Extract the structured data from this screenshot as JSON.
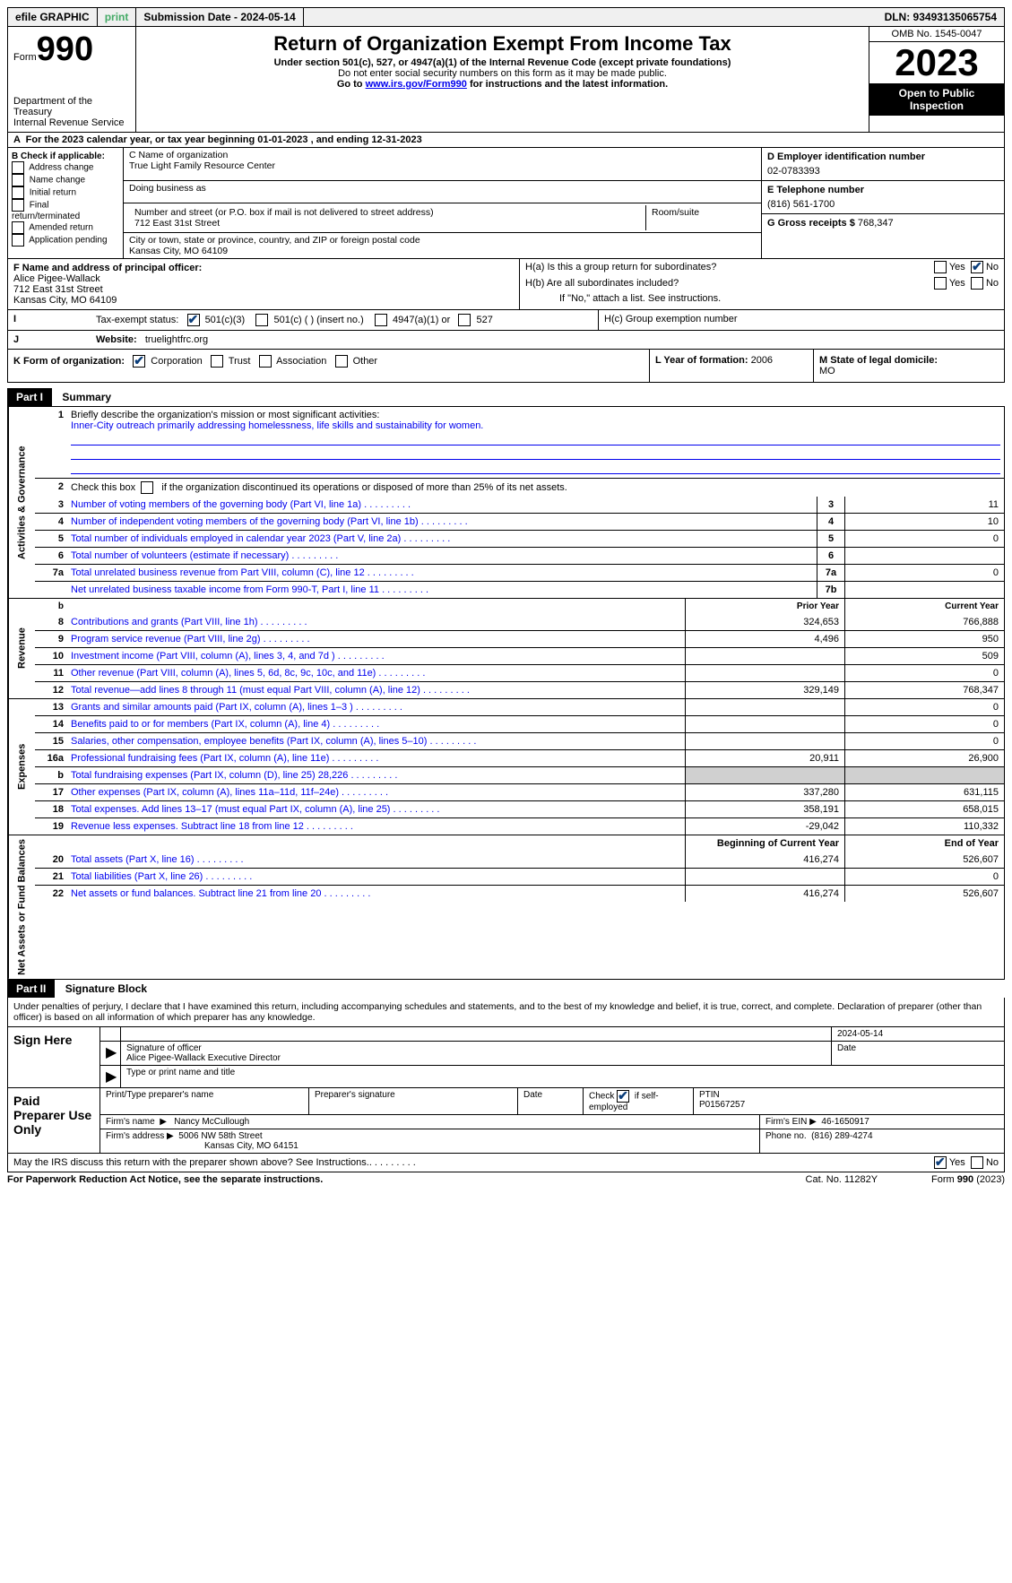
{
  "topbar": {
    "efile": "efile GRAPHIC",
    "print": "print",
    "submission": "Submission Date - 2024-05-14",
    "dln": "DLN: 93493135065754"
  },
  "header": {
    "form_prefix": "Form",
    "form_num": "990",
    "dept": "Department of the Treasury\nInternal Revenue Service",
    "title": "Return of Organization Exempt From Income Tax",
    "subtitle": "Under section 501(c), 527, or 4947(a)(1) of the Internal Revenue Code (except private foundations)",
    "note1": "Do not enter social security numbers on this form as it may be made public.",
    "note2_pre": "Go to ",
    "note2_link": "www.irs.gov/Form990",
    "note2_post": " for instructions and the latest information.",
    "omb": "OMB No. 1545-0047",
    "year": "2023",
    "inspection": "Open to Public Inspection"
  },
  "line_a": "For the 2023 calendar year, or tax year beginning 01-01-2023    , and ending 12-31-2023",
  "box_b": {
    "title": "B Check if applicable:",
    "items": [
      "Address change",
      "Name change",
      "Initial return",
      "Final return/terminated",
      "Amended return",
      "Application pending"
    ]
  },
  "box_c": {
    "name_label": "C Name of organization",
    "name": "True Light Family Resource Center",
    "dba_label": "Doing business as",
    "street_label": "Number and street (or P.O. box if mail is not delivered to street address)",
    "room_label": "Room/suite",
    "street": "712 East 31st Street",
    "city_label": "City or town, state or province, country, and ZIP or foreign postal code",
    "city": "Kansas City, MO  64109"
  },
  "box_d": {
    "ein_label": "D Employer identification number",
    "ein": "02-0783393",
    "tel_label": "E Telephone number",
    "tel": "(816) 561-1700",
    "gross_label": "G Gross receipts $",
    "gross": "768,347"
  },
  "box_f": {
    "label": "F  Name and address of principal officer:",
    "name": "Alice Pigee-Wallack",
    "street": "712 East 31st Street",
    "city": "Kansas City, MO  64109"
  },
  "box_h": {
    "a": "H(a)  Is this a group return for subordinates?",
    "b": "H(b)  Are all subordinates included?",
    "b_note": "If \"No,\" attach a list. See instructions.",
    "c": "H(c)  Group exemption number",
    "yes": "Yes",
    "no": "No"
  },
  "row_i": {
    "label": "I",
    "text": "Tax-exempt status:",
    "opts": [
      "501(c)(3)",
      "501(c) (  ) (insert no.)",
      "4947(a)(1) or",
      "527"
    ]
  },
  "row_j": {
    "label": "J",
    "text": "Website:",
    "val": "truelightfrc.org"
  },
  "row_k": {
    "label": "K Form of organization:",
    "opts": [
      "Corporation",
      "Trust",
      "Association",
      "Other"
    ],
    "l_label": "L Year of formation:",
    "l_val": "2006",
    "m_label": "M State of legal domicile:",
    "m_val": "MO"
  },
  "part1": {
    "header": "Part I",
    "title": "Summary",
    "mission_label": "Briefly describe the organization's mission or most significant activities:",
    "mission": "Inner-City outreach primarily addressing homelessness, life skills and sustainability for women.",
    "sections": {
      "gov": "Activities & Governance",
      "rev": "Revenue",
      "exp": "Expenses",
      "net": "Net Assets or Fund Balances"
    },
    "line2": "Check this box          if the organization discontinued its operations or disposed of more than 25% of its net assets.",
    "lines_gov": [
      {
        "n": "3",
        "d": "Number of voting members of the governing body (Part VI, line 1a)",
        "box": "3",
        "v": "11"
      },
      {
        "n": "4",
        "d": "Number of independent voting members of the governing body (Part VI, line 1b)",
        "box": "4",
        "v": "10"
      },
      {
        "n": "5",
        "d": "Total number of individuals employed in calendar year 2023 (Part V, line 2a)",
        "box": "5",
        "v": "0"
      },
      {
        "n": "6",
        "d": "Total number of volunteers (estimate if necessary)",
        "box": "6",
        "v": ""
      },
      {
        "n": "7a",
        "d": "Total unrelated business revenue from Part VIII, column (C), line 12",
        "box": "7a",
        "v": "0"
      },
      {
        "n": "",
        "d": "Net unrelated business taxable income from Form 990-T, Part I, line 11",
        "box": "7b",
        "v": ""
      }
    ],
    "col_prior": "Prior Year",
    "col_current": "Current Year",
    "lines_rev": [
      {
        "n": "8",
        "d": "Contributions and grants (Part VIII, line 1h)",
        "p": "324,653",
        "c": "766,888"
      },
      {
        "n": "9",
        "d": "Program service revenue (Part VIII, line 2g)",
        "p": "4,496",
        "c": "950"
      },
      {
        "n": "10",
        "d": "Investment income (Part VIII, column (A), lines 3, 4, and 7d )",
        "p": "",
        "c": "509"
      },
      {
        "n": "11",
        "d": "Other revenue (Part VIII, column (A), lines 5, 6d, 8c, 9c, 10c, and 11e)",
        "p": "",
        "c": "0"
      },
      {
        "n": "12",
        "d": "Total revenue—add lines 8 through 11 (must equal Part VIII, column (A), line 12)",
        "p": "329,149",
        "c": "768,347"
      }
    ],
    "lines_exp": [
      {
        "n": "13",
        "d": "Grants and similar amounts paid (Part IX, column (A), lines 1–3 )",
        "p": "",
        "c": "0"
      },
      {
        "n": "14",
        "d": "Benefits paid to or for members (Part IX, column (A), line 4)",
        "p": "",
        "c": "0"
      },
      {
        "n": "15",
        "d": "Salaries, other compensation, employee benefits (Part IX, column (A), lines 5–10)",
        "p": "",
        "c": "0"
      },
      {
        "n": "16a",
        "d": "Professional fundraising fees (Part IX, column (A), line 11e)",
        "p": "20,911",
        "c": "26,900"
      },
      {
        "n": "b",
        "d": "Total fundraising expenses (Part IX, column (D), line 25) 28,226",
        "p": "grey",
        "c": "grey"
      },
      {
        "n": "17",
        "d": "Other expenses (Part IX, column (A), lines 11a–11d, 11f–24e)",
        "p": "337,280",
        "c": "631,115"
      },
      {
        "n": "18",
        "d": "Total expenses. Add lines 13–17 (must equal Part IX, column (A), line 25)",
        "p": "358,191",
        "c": "658,015"
      },
      {
        "n": "19",
        "d": "Revenue less expenses. Subtract line 18 from line 12",
        "p": "-29,042",
        "c": "110,332"
      }
    ],
    "col_begin": "Beginning of Current Year",
    "col_end": "End of Year",
    "lines_net": [
      {
        "n": "20",
        "d": "Total assets (Part X, line 16)",
        "p": "416,274",
        "c": "526,607"
      },
      {
        "n": "21",
        "d": "Total liabilities (Part X, line 26)",
        "p": "",
        "c": "0"
      },
      {
        "n": "22",
        "d": "Net assets or fund balances. Subtract line 21 from line 20",
        "p": "416,274",
        "c": "526,607"
      }
    ]
  },
  "part2": {
    "header": "Part II",
    "title": "Signature Block",
    "declaration": "Under penalties of perjury, I declare that I have examined this return, including accompanying schedules and statements, and to the best of my knowledge and belief, it is true, correct, and complete. Declaration of preparer (other than officer) is based on all information of which preparer has any knowledge."
  },
  "sign": {
    "label": "Sign Here",
    "date": "2024-05-14",
    "sig_label": "Signature of officer",
    "officer": "Alice Pigee-Wallack  Executive Director",
    "type_label": "Type or print name and title",
    "date_label": "Date"
  },
  "preparer": {
    "label": "Paid Preparer Use Only",
    "col1": "Print/Type preparer's name",
    "col2": "Preparer's signature",
    "col3": "Date",
    "col4a": "Check",
    "col4b": "if self-employed",
    "col5_label": "PTIN",
    "col5": "P01567257",
    "firm_name_label": "Firm's name",
    "firm_name": "Nancy McCullough",
    "firm_ein_label": "Firm's EIN",
    "firm_ein": "46-1650917",
    "firm_addr_label": "Firm's address",
    "firm_addr1": "5006 NW 58th Street",
    "firm_addr2": "Kansas City, MO  64151",
    "phone_label": "Phone no.",
    "phone": "(816) 289-4274"
  },
  "footer_q": "May the IRS discuss this return with the preparer shown above? See Instructions.",
  "bottom": {
    "left": "For Paperwork Reduction Act Notice, see the separate instructions.",
    "mid": "Cat. No. 11282Y",
    "right_pre": "Form ",
    "right_bold": "990",
    "right_post": " (2023)"
  }
}
